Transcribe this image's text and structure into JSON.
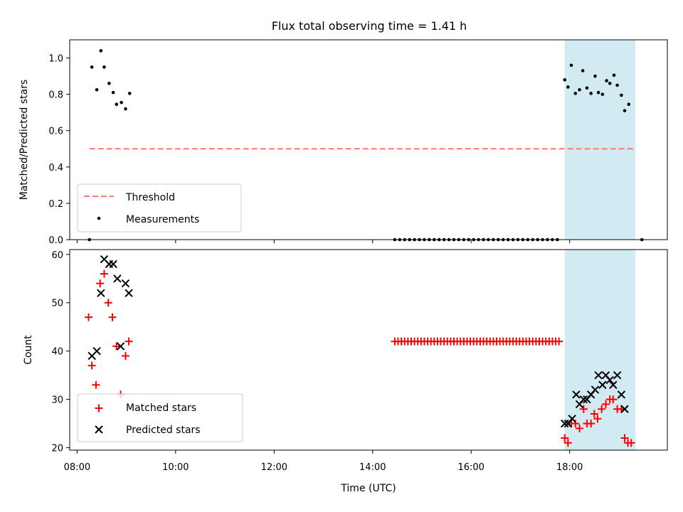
{
  "title": "Flux total observing time = 1.41 h",
  "colors": {
    "highlight": "#add8e6",
    "threshold": "#ff7777",
    "measurements": "#000000",
    "matched": "#ff0000",
    "predicted": "#000000"
  },
  "chart_data": [
    {
      "type": "scatter",
      "ylabel": "Matched/Predicted stars",
      "xlabel": "",
      "xlim": [
        "07:51",
        "19:59"
      ],
      "ylim": [
        0,
        1.1
      ],
      "yticks": [
        0.0,
        0.2,
        0.4,
        0.6,
        0.8,
        1.0
      ],
      "ytick_labels": [
        "0.0",
        "0.2",
        "0.4",
        "0.6",
        "0.8",
        "1.0"
      ],
      "legend_placement": "lower-left",
      "highlight_span": [
        "17:54",
        "19:20"
      ],
      "threshold": {
        "name": "Threshold",
        "value": 0.5,
        "x_range": [
          "08:15",
          "19:20"
        ]
      },
      "series": [
        {
          "name": "Measurements",
          "points": [
            [
              "08:15",
              0.0
            ],
            [
              "08:18",
              0.95
            ],
            [
              "08:24",
              0.825
            ],
            [
              "08:29",
              1.04
            ],
            [
              "08:33",
              0.95
            ],
            [
              "08:39",
              0.86
            ],
            [
              "08:44",
              0.81
            ],
            [
              "08:48",
              0.745
            ],
            [
              "08:54",
              0.755
            ],
            [
              "08:59",
              0.72
            ],
            [
              "09:04",
              0.805
            ],
            [
              "14:27",
              0.0
            ],
            [
              "14:33",
              0.0
            ],
            [
              "14:39",
              0.0
            ],
            [
              "14:45",
              0.0
            ],
            [
              "14:51",
              0.0
            ],
            [
              "14:57",
              0.0
            ],
            [
              "15:03",
              0.0
            ],
            [
              "15:09",
              0.0
            ],
            [
              "15:15",
              0.0
            ],
            [
              "15:21",
              0.0
            ],
            [
              "15:27",
              0.0
            ],
            [
              "15:33",
              0.0
            ],
            [
              "15:39",
              0.0
            ],
            [
              "15:45",
              0.0
            ],
            [
              "15:51",
              0.0
            ],
            [
              "15:57",
              0.0
            ],
            [
              "16:03",
              0.0
            ],
            [
              "16:09",
              0.0
            ],
            [
              "16:15",
              0.0
            ],
            [
              "16:21",
              0.0
            ],
            [
              "16:27",
              0.0
            ],
            [
              "16:33",
              0.0
            ],
            [
              "16:39",
              0.0
            ],
            [
              "16:45",
              0.0
            ],
            [
              "16:51",
              0.0
            ],
            [
              "16:57",
              0.0
            ],
            [
              "17:03",
              0.0
            ],
            [
              "17:09",
              0.0
            ],
            [
              "17:15",
              0.0
            ],
            [
              "17:21",
              0.0
            ],
            [
              "17:27",
              0.0
            ],
            [
              "17:33",
              0.0
            ],
            [
              "17:39",
              0.0
            ],
            [
              "17:45",
              0.0
            ],
            [
              "17:54",
              0.88
            ],
            [
              "17:58",
              0.84
            ],
            [
              "18:02",
              0.96
            ],
            [
              "18:07",
              0.805
            ],
            [
              "18:12",
              0.825
            ],
            [
              "18:16",
              0.93
            ],
            [
              "18:21",
              0.835
            ],
            [
              "18:26",
              0.805
            ],
            [
              "18:31",
              0.9
            ],
            [
              "18:35",
              0.81
            ],
            [
              "18:40",
              0.8
            ],
            [
              "18:45",
              0.875
            ],
            [
              "18:49",
              0.86
            ],
            [
              "18:54",
              0.905
            ],
            [
              "18:58",
              0.85
            ],
            [
              "19:03",
              0.795
            ],
            [
              "19:07",
              0.71
            ],
            [
              "19:12",
              0.745
            ],
            [
              "19:28",
              0.0
            ]
          ]
        }
      ]
    },
    {
      "type": "scatter",
      "ylabel": "Count",
      "xlabel": "Time (UTC)",
      "xlim": [
        "07:51",
        "19:59"
      ],
      "ylim": [
        19.5,
        61
      ],
      "yticks": [
        20,
        30,
        40,
        50,
        60
      ],
      "ytick_labels": [
        "20",
        "30",
        "40",
        "50",
        "60"
      ],
      "xticks": [
        "08:00",
        "10:00",
        "12:00",
        "14:00",
        "16:00",
        "18:00"
      ],
      "xtick_labels": [
        "08:00",
        "10:00",
        "12:00",
        "14:00",
        "16:00",
        "18:00"
      ],
      "legend_placement": "lower-left",
      "highlight_span": [
        "17:54",
        "19:20"
      ],
      "series": [
        {
          "name": "Matched stars",
          "marker": "plus",
          "points": [
            [
              "08:14",
              47
            ],
            [
              "08:18",
              37
            ],
            [
              "08:23",
              33
            ],
            [
              "08:28",
              54
            ],
            [
              "08:33",
              56
            ],
            [
              "08:38",
              50
            ],
            [
              "08:43",
              47
            ],
            [
              "08:48",
              41
            ],
            [
              "08:53",
              31
            ],
            [
              "08:59",
              39
            ],
            [
              "09:03",
              42
            ],
            [
              "14:27",
              42
            ],
            [
              "14:31",
              42
            ],
            [
              "14:35",
              42
            ],
            [
              "14:39",
              42
            ],
            [
              "14:43",
              42
            ],
            [
              "14:47",
              42
            ],
            [
              "14:51",
              42
            ],
            [
              "14:55",
              42
            ],
            [
              "14:59",
              42
            ],
            [
              "15:03",
              42
            ],
            [
              "15:07",
              42
            ],
            [
              "15:11",
              42
            ],
            [
              "15:15",
              42
            ],
            [
              "15:19",
              42
            ],
            [
              "15:23",
              42
            ],
            [
              "15:27",
              42
            ],
            [
              "15:31",
              42
            ],
            [
              "15:35",
              42
            ],
            [
              "15:39",
              42
            ],
            [
              "15:43",
              42
            ],
            [
              "15:47",
              42
            ],
            [
              "15:51",
              42
            ],
            [
              "15:55",
              42
            ],
            [
              "15:59",
              42
            ],
            [
              "16:03",
              42
            ],
            [
              "16:07",
              42
            ],
            [
              "16:11",
              42
            ],
            [
              "16:15",
              42
            ],
            [
              "16:19",
              42
            ],
            [
              "16:23",
              42
            ],
            [
              "16:27",
              42
            ],
            [
              "16:31",
              42
            ],
            [
              "16:35",
              42
            ],
            [
              "16:39",
              42
            ],
            [
              "16:43",
              42
            ],
            [
              "16:47",
              42
            ],
            [
              "16:51",
              42
            ],
            [
              "16:55",
              42
            ],
            [
              "16:59",
              42
            ],
            [
              "17:03",
              42
            ],
            [
              "17:07",
              42
            ],
            [
              "17:11",
              42
            ],
            [
              "17:15",
              42
            ],
            [
              "17:19",
              42
            ],
            [
              "17:23",
              42
            ],
            [
              "17:27",
              42
            ],
            [
              "17:31",
              42
            ],
            [
              "17:35",
              42
            ],
            [
              "17:39",
              42
            ],
            [
              "17:43",
              42
            ],
            [
              "17:47",
              42
            ],
            [
              "17:54",
              22
            ],
            [
              "17:58",
              21
            ],
            [
              "18:02",
              25
            ],
            [
              "18:07",
              25
            ],
            [
              "18:12",
              24
            ],
            [
              "18:17",
              28
            ],
            [
              "18:21",
              25
            ],
            [
              "18:26",
              25
            ],
            [
              "18:30",
              27
            ],
            [
              "18:34",
              26
            ],
            [
              "18:39",
              28
            ],
            [
              "18:44",
              29
            ],
            [
              "18:49",
              30
            ],
            [
              "18:53",
              30
            ],
            [
              "18:58",
              28
            ],
            [
              "19:03",
              28
            ],
            [
              "19:07",
              22
            ],
            [
              "19:11",
              21
            ],
            [
              "19:15",
              21
            ]
          ]
        },
        {
          "name": "Predicted stars",
          "marker": "x",
          "points": [
            [
              "08:18",
              39
            ],
            [
              "08:24",
              40
            ],
            [
              "08:29",
              52
            ],
            [
              "08:33",
              59
            ],
            [
              "08:39",
              58
            ],
            [
              "08:44",
              58
            ],
            [
              "08:49",
              55
            ],
            [
              "08:53",
              41
            ],
            [
              "08:59",
              54
            ],
            [
              "09:03",
              52
            ],
            [
              "17:54",
              25
            ],
            [
              "17:58",
              25
            ],
            [
              "18:03",
              26
            ],
            [
              "18:08",
              31
            ],
            [
              "18:12",
              29
            ],
            [
              "18:17",
              30
            ],
            [
              "18:21",
              30
            ],
            [
              "18:26",
              31
            ],
            [
              "18:31",
              32
            ],
            [
              "18:35",
              35
            ],
            [
              "18:40",
              33
            ],
            [
              "18:44",
              35
            ],
            [
              "18:49",
              34
            ],
            [
              "18:53",
              33
            ],
            [
              "18:58",
              35
            ],
            [
              "19:03",
              31
            ],
            [
              "19:07",
              28
            ]
          ]
        }
      ]
    }
  ]
}
